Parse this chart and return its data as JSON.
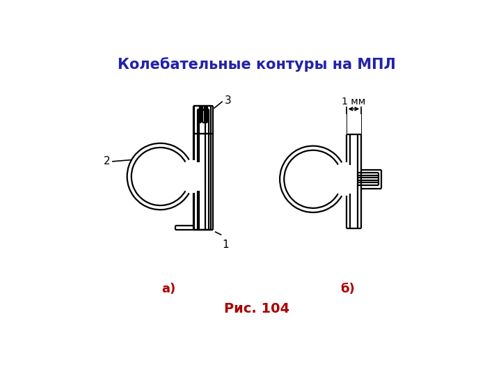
{
  "title": "Колебательные контуры на МПЛ",
  "title_color": "#2222aa",
  "title_fontsize": 15,
  "label_a": "а)",
  "label_b": "б)",
  "label_fig": "Рис. 104",
  "label_color": "#aa0000",
  "label_fontsize": 13,
  "fig_fontsize": 14,
  "line_color": "#000000",
  "lw": 1.6,
  "bg_color": "#ffffff",
  "ann_fontsize": 11
}
